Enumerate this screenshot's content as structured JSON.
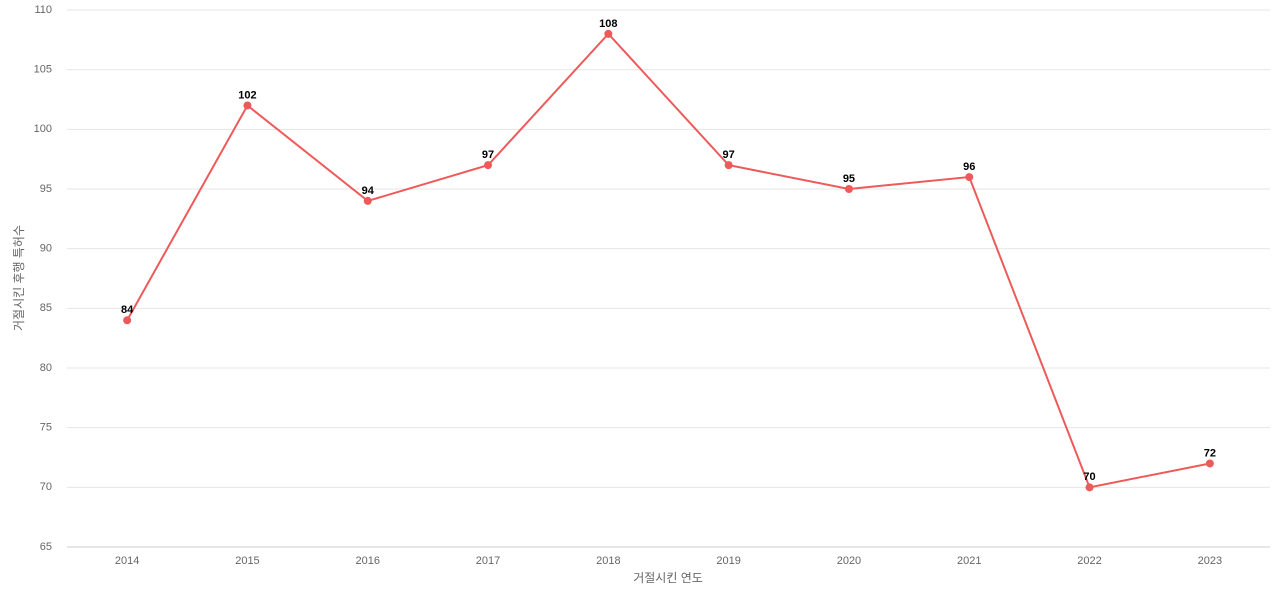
{
  "chart_data": {
    "type": "line",
    "x_label": "거절시킨 연도",
    "y_label": "거절시킨 후행 특허수",
    "categories": [
      "2014",
      "2015",
      "2016",
      "2017",
      "2018",
      "2019",
      "2020",
      "2021",
      "2022",
      "2023"
    ],
    "series": [
      {
        "name": "거절시킨 후행 특허수",
        "color": "#ee5a5a",
        "values": [
          84,
          102,
          94,
          97,
          108,
          97,
          95,
          96,
          70,
          72
        ]
      }
    ],
    "ylim": [
      65,
      110
    ],
    "yticks": [
      65,
      70,
      75,
      80,
      85,
      90,
      95,
      100,
      105,
      110
    ],
    "grid": true
  }
}
